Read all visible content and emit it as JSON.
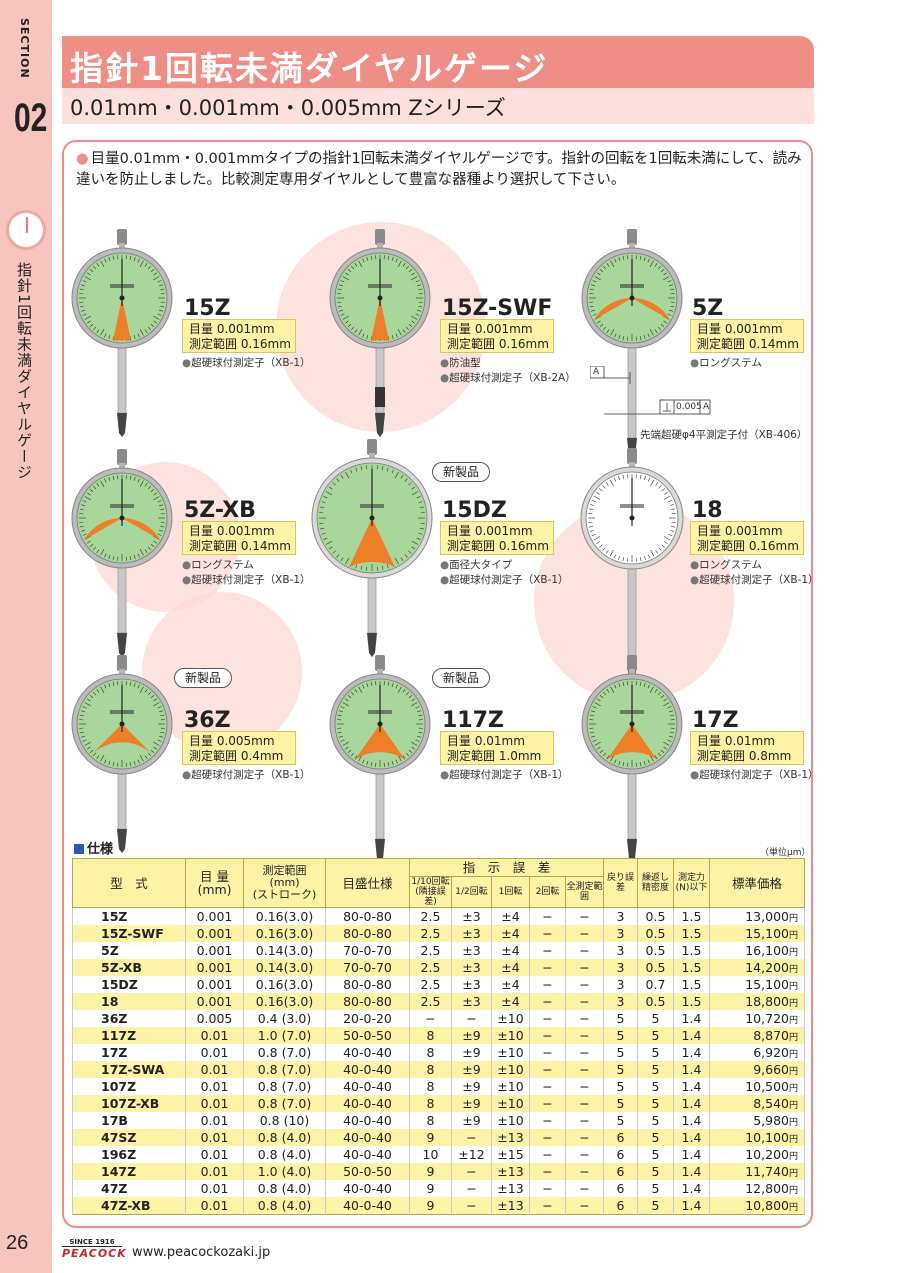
{
  "side": {
    "section_label": "SECTION",
    "section_number": "02",
    "category": "指針1回転未満ダイヤルゲージ",
    "page_number": "26"
  },
  "header": {
    "title": "指針1回転未満ダイヤルゲージ",
    "subtitle": "0.01mm・0.001mm・0.005mm Zシリーズ"
  },
  "intro": {
    "bullet": "●",
    "text": "目量0.01mm・0.001mmタイプの指針1回転未満ダイヤルゲージです。指針の回転を1回転未満にして、読み違いを防止しました。比較測定専用ダイヤルとして豊富な器種より選択して下さい。"
  },
  "products": [
    {
      "name": "15Z",
      "spec1": "目量 0.001mm",
      "spec2": "測定範囲 0.16mm",
      "notes": [
        "超硬球付測定子（XB-1）"
      ],
      "badge": ""
    },
    {
      "name": "15Z-SWF",
      "spec1": "目量 0.001mm",
      "spec2": "測定範囲 0.16mm",
      "notes": [
        "防油型",
        "超硬球付測定子（XB-2A）"
      ],
      "badge": ""
    },
    {
      "name": "5Z",
      "spec1": "目量 0.001mm",
      "spec2": "測定範囲 0.14mm",
      "notes": [
        "ロングステム"
      ],
      "badge": ""
    },
    {
      "name": "5Z-XB",
      "spec1": "目量 0.001mm",
      "spec2": "測定範囲 0.14mm",
      "notes": [
        "ロングステム",
        "超硬球付測定子（XB-1）"
      ],
      "badge": ""
    },
    {
      "name": "15DZ",
      "spec1": "目量 0.001mm",
      "spec2": "測定範囲 0.16mm",
      "notes": [
        "面径大タイプ",
        "超硬球付測定子（XB-1）"
      ],
      "badge": "新製品"
    },
    {
      "name": "18",
      "spec1": "目量 0.001mm",
      "spec2": "測定範囲 0.16mm",
      "notes": [
        "ロングステム",
        "超硬球付測定子（XB-1）"
      ],
      "badge": ""
    },
    {
      "name": "36Z",
      "spec1": "目量 0.005mm",
      "spec2": "測定範囲 0.4mm",
      "notes": [
        "超硬球付測定子（XB-1）"
      ],
      "badge": "新製品"
    },
    {
      "name": "117Z",
      "spec1": "目量 0.01mm",
      "spec2": "測定範囲 1.0mm",
      "notes": [
        "超硬球付測定子（XB-1）"
      ],
      "badge": "新製品"
    },
    {
      "name": "17Z",
      "spec1": "目量 0.01mm",
      "spec2": "測定範囲 0.8mm",
      "notes": [
        "超硬球付測定子（XB-1）"
      ],
      "badge": ""
    }
  ],
  "drawing_5z": {
    "label_a": "A",
    "tolerance": "0.005",
    "datum": "A",
    "tip_note": "先端超硬φ4平測定子付（XB-406）"
  },
  "spec_table": {
    "title": "仕様",
    "unit_note": "（単位μm）",
    "headers": {
      "model": "型　式",
      "graduation": "目 量",
      "graduation_unit": "(mm)",
      "range": "測定範囲",
      "range_unit": "(mm)",
      "range_stroke": "(ストローク)",
      "dial": "目盛仕様",
      "error": "指　示　誤　差",
      "err1": "1/10回転",
      "err1b": "(隣接誤差)",
      "err2": "1/2回転",
      "err3": "1回転",
      "err4": "2回転",
      "err5": "全測定範囲",
      "hysteresis": "戻り誤差",
      "repeat": "繰返し",
      "repeat2": "精密度",
      "force": "測定力",
      "force2": "(N)以下",
      "price": "標準価格"
    },
    "yen": "円",
    "rows": [
      {
        "model": "15Z",
        "grad": "0.001",
        "range": "0.16(3.0)",
        "dial": "80-0-80",
        "e1": "2.5",
        "e2": "±3",
        "e3": "±4",
        "e4": "−",
        "e5": "−",
        "hys": "3",
        "rep": "0.5",
        "force": "1.5",
        "price": "13,000"
      },
      {
        "model": "15Z-SWF",
        "grad": "0.001",
        "range": "0.16(3.0)",
        "dial": "80-0-80",
        "e1": "2.5",
        "e2": "±3",
        "e3": "±4",
        "e4": "−",
        "e5": "−",
        "hys": "3",
        "rep": "0.5",
        "force": "1.5",
        "price": "15,100"
      },
      {
        "model": "5Z",
        "grad": "0.001",
        "range": "0.14(3.0)",
        "dial": "70-0-70",
        "e1": "2.5",
        "e2": "±3",
        "e3": "±4",
        "e4": "−",
        "e5": "−",
        "hys": "3",
        "rep": "0.5",
        "force": "1.5",
        "price": "16,100"
      },
      {
        "model": "5Z-XB",
        "grad": "0.001",
        "range": "0.14(3.0)",
        "dial": "70-0-70",
        "e1": "2.5",
        "e2": "±3",
        "e3": "±4",
        "e4": "−",
        "e5": "−",
        "hys": "3",
        "rep": "0.5",
        "force": "1.5",
        "price": "14,200"
      },
      {
        "model": "15DZ",
        "grad": "0.001",
        "range": "0.16(3.0)",
        "dial": "80-0-80",
        "e1": "2.5",
        "e2": "±3",
        "e3": "±4",
        "e4": "−",
        "e5": "−",
        "hys": "3",
        "rep": "0.7",
        "force": "1.5",
        "price": "15,100"
      },
      {
        "model": "18",
        "grad": "0.001",
        "range": "0.16(3.0)",
        "dial": "80-0-80",
        "e1": "2.5",
        "e2": "±3",
        "e3": "±4",
        "e4": "−",
        "e5": "−",
        "hys": "3",
        "rep": "0.5",
        "force": "1.5",
        "price": "18,800"
      },
      {
        "model": "36Z",
        "grad": "0.005",
        "range": "0.4 (3.0)",
        "dial": "20-0-20",
        "e1": "−",
        "e2": "−",
        "e3": "±10",
        "e4": "−",
        "e5": "−",
        "hys": "5",
        "rep": "5",
        "force": "1.4",
        "price": "10,720"
      },
      {
        "model": "117Z",
        "grad": "0.01",
        "range": "1.0 (7.0)",
        "dial": "50-0-50",
        "e1": "8",
        "e2": "±9",
        "e3": "±10",
        "e4": "−",
        "e5": "−",
        "hys": "5",
        "rep": "5",
        "force": "1.4",
        "price": "8,870"
      },
      {
        "model": "17Z",
        "grad": "0.01",
        "range": "0.8 (7.0)",
        "dial": "40-0-40",
        "e1": "8",
        "e2": "±9",
        "e3": "±10",
        "e4": "−",
        "e5": "−",
        "hys": "5",
        "rep": "5",
        "force": "1.4",
        "price": "6,920"
      },
      {
        "model": "17Z-SWA",
        "grad": "0.01",
        "range": "0.8 (7.0)",
        "dial": "40-0-40",
        "e1": "8",
        "e2": "±9",
        "e3": "±10",
        "e4": "−",
        "e5": "−",
        "hys": "5",
        "rep": "5",
        "force": "1.4",
        "price": "9,660"
      },
      {
        "model": "107Z",
        "grad": "0.01",
        "range": "0.8 (7.0)",
        "dial": "40-0-40",
        "e1": "8",
        "e2": "±9",
        "e3": "±10",
        "e4": "−",
        "e5": "−",
        "hys": "5",
        "rep": "5",
        "force": "1.4",
        "price": "10,500"
      },
      {
        "model": "107Z-XB",
        "grad": "0.01",
        "range": "0.8 (7.0)",
        "dial": "40-0-40",
        "e1": "8",
        "e2": "±9",
        "e3": "±10",
        "e4": "−",
        "e5": "−",
        "hys": "5",
        "rep": "5",
        "force": "1.4",
        "price": "8,540"
      },
      {
        "model": "17B",
        "grad": "0.01",
        "range": "0.8 (10)",
        "dial": "40-0-40",
        "e1": "8",
        "e2": "±9",
        "e3": "±10",
        "e4": "−",
        "e5": "−",
        "hys": "5",
        "rep": "5",
        "force": "1.4",
        "price": "5,980"
      },
      {
        "model": "47SZ",
        "grad": "0.01",
        "range": "0.8 (4.0)",
        "dial": "40-0-40",
        "e1": "9",
        "e2": "−",
        "e3": "±13",
        "e4": "−",
        "e5": "−",
        "hys": "6",
        "rep": "5",
        "force": "1.4",
        "price": "10,100"
      },
      {
        "model": "196Z",
        "grad": "0.01",
        "range": "0.8 (4.0)",
        "dial": "40-0-40",
        "e1": "10",
        "e2": "±12",
        "e3": "±15",
        "e4": "−",
        "e5": "−",
        "hys": "6",
        "rep": "5",
        "force": "1.4",
        "price": "10,200"
      },
      {
        "model": "147Z",
        "grad": "0.01",
        "range": "1.0 (4.0)",
        "dial": "50-0-50",
        "e1": "9",
        "e2": "−",
        "e3": "±13",
        "e4": "−",
        "e5": "−",
        "hys": "6",
        "rep": "5",
        "force": "1.4",
        "price": "11,740"
      },
      {
        "model": "47Z",
        "grad": "0.01",
        "range": "0.8 (4.0)",
        "dial": "40-0-40",
        "e1": "9",
        "e2": "−",
        "e3": "±13",
        "e4": "−",
        "e5": "−",
        "hys": "6",
        "rep": "5",
        "force": "1.4",
        "price": "12,800"
      },
      {
        "model": "47Z-XB",
        "grad": "0.01",
        "range": "0.8 (4.0)",
        "dial": "40-0-40",
        "e1": "9",
        "e2": "−",
        "e3": "±13",
        "e4": "−",
        "e5": "−",
        "hys": "6",
        "rep": "5",
        "force": "1.4",
        "price": "10,800"
      }
    ]
  },
  "footer": {
    "logo_since": "SINCE 1916",
    "logo_brand": "PEACOCK",
    "url": "www.peacockozaki.jp"
  },
  "colors": {
    "accent": "#ef8d87",
    "light_pink": "#fbe0dd",
    "highlight": "#fdf3a6",
    "dial_green": "#a9d69a",
    "sector_orange": "#f07a22"
  }
}
